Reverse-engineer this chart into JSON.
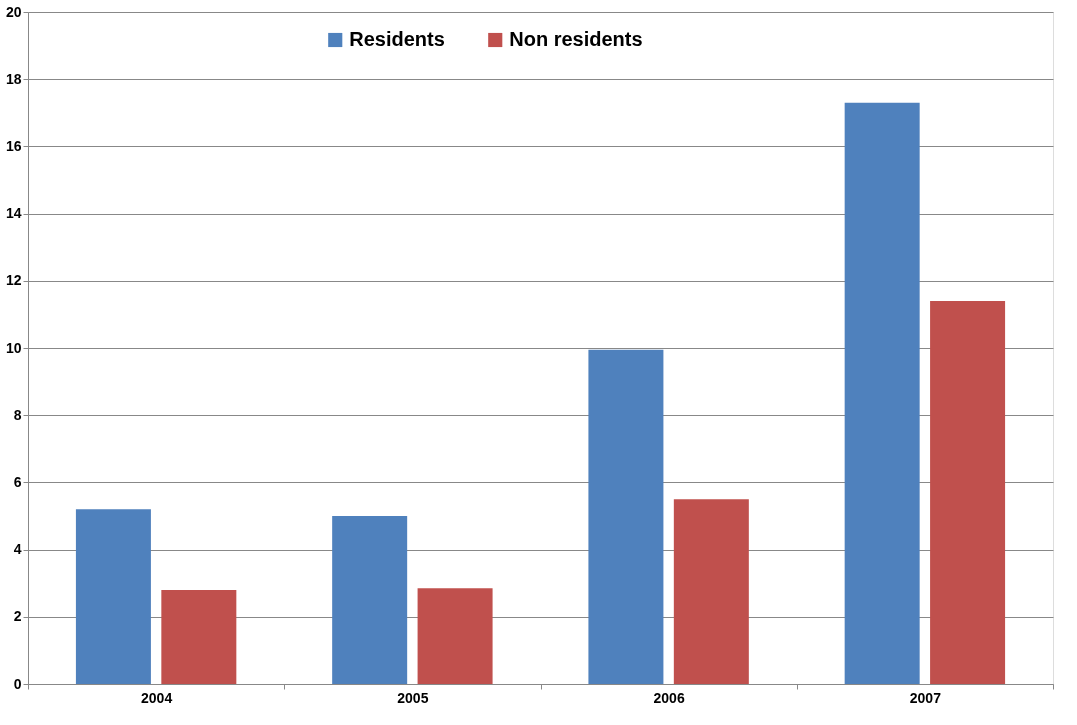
{
  "chart_data": {
    "type": "bar",
    "categories": [
      "2004",
      "2005",
      "2006",
      "2007"
    ],
    "series": [
      {
        "name": "Residents",
        "color": "#4f81bd",
        "values": [
          5.2,
          5.0,
          9.95,
          17.3
        ]
      },
      {
        "name": "Non residents",
        "color": "#c0504d",
        "values": [
          2.8,
          2.85,
          5.5,
          11.4
        ]
      }
    ],
    "ylim": [
      0,
      20
    ],
    "yticks": [
      0,
      2,
      4,
      6,
      8,
      10,
      12,
      14,
      16,
      18,
      20
    ],
    "grid": "y",
    "legend": "top"
  }
}
